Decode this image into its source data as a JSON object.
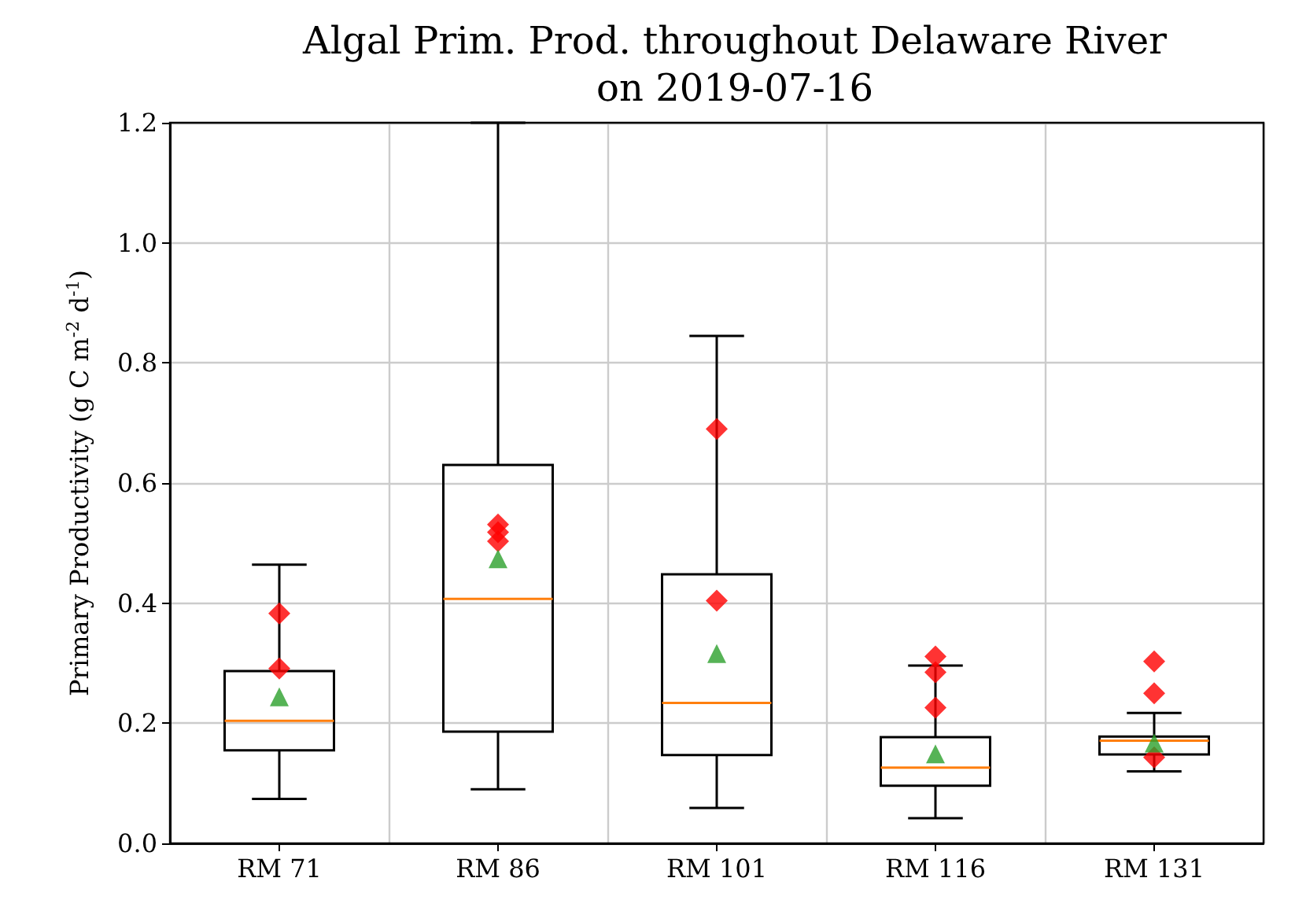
{
  "chart_data": {
    "type": "box",
    "title": "Algal Prim. Prod. throughout Delaware River\non 2019-07-16",
    "ylabel": "Primary Productivity (g C m$^{-2}$ d$^{-1}$)",
    "categories": [
      "RM 71",
      "RM 86",
      "RM 101",
      "RM 116",
      "RM 131"
    ],
    "series": [
      {
        "type": "box",
        "color": "#000000",
        "boxes": [
          {
            "low": 0.074,
            "q1": 0.155,
            "median": 0.204,
            "q3": 0.287,
            "high": 0.464,
            "mean": 0.244
          },
          {
            "low": 0.09,
            "q1": 0.186,
            "median": 0.407,
            "q3": 0.63,
            "high": 1.2,
            "mean": 0.474
          },
          {
            "low": 0.059,
            "q1": 0.147,
            "median": 0.234,
            "q3": 0.448,
            "high": 0.845,
            "mean": 0.316
          },
          {
            "low": 0.042,
            "q1": 0.096,
            "median": 0.126,
            "q3": 0.177,
            "high": 0.296,
            "mean": 0.149
          },
          {
            "low": 0.12,
            "q1": 0.148,
            "median": 0.171,
            "q3": 0.178,
            "high": 0.217,
            "mean": 0.167
          }
        ]
      },
      {
        "type": "scatter",
        "color": "#ff0000",
        "marker": "diamond",
        "x": [
          "RM 71",
          "RM 71",
          "RM 86",
          "RM 86",
          "RM 86",
          "RM 101",
          "RM 101",
          "RM 116",
          "RM 116",
          "RM 116",
          "RM 131",
          "RM 131",
          "RM 131"
        ],
        "values": [
          0.383,
          0.291,
          0.531,
          0.518,
          0.503,
          0.69,
          0.404,
          0.311,
          0.285,
          0.226,
          0.303,
          0.25,
          0.143
        ]
      }
    ],
    "ylim": [
      0,
      1.2
    ],
    "yticks": [
      {
        "value": 0,
        "label": "0.0"
      },
      {
        "value": 0.2,
        "label": "0.2"
      },
      {
        "value": 0.4,
        "label": "0.4"
      },
      {
        "value": 0.6,
        "label": "0.6"
      },
      {
        "value": 0.8,
        "label": "0.8"
      },
      {
        "value": 1.0,
        "label": "1.0"
      },
      {
        "value": 1.2,
        "label": "1.2"
      }
    ],
    "grid": true
  }
}
